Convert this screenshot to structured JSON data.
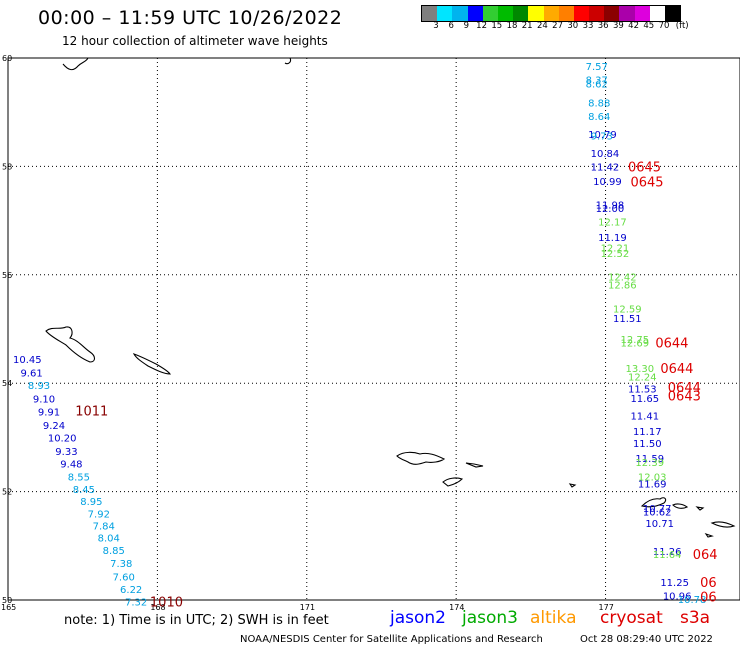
{
  "header": {
    "title": "00:00 – 11:59 UTC 10/26/2022",
    "subtitle": "12 hour collection of altimeter wave heights"
  },
  "legend": {
    "colors": [
      "#7f7f7f",
      "#00e5ff",
      "#00b4ee",
      "#0000ff",
      "#32cd32",
      "#00bb00",
      "#008800",
      "#ffff00",
      "#ffaa00",
      "#ff7f00",
      "#ff0000",
      "#cc0000",
      "#8b0000",
      "#aa00aa",
      "#dd00dd",
      "#ffffff",
      "#000000"
    ],
    "labels": [
      "3",
      "6",
      "9",
      "12",
      "15",
      "18",
      "21",
      "24",
      "27",
      "30",
      "33",
      "36",
      "39",
      "42",
      "45",
      "70",
      "(ft)"
    ]
  },
  "map": {
    "lat_labels": [
      "60",
      "58",
      "56",
      "54",
      "52",
      "50"
    ],
    "lon_labels": [
      "165",
      "168",
      "171",
      "174",
      "177"
    ],
    "observations": [
      {
        "t": "7.57",
        "c": "#00a0e0",
        "lon": 176.6,
        "lat": 59.85
      },
      {
        "t": "8.37",
        "c": "#00a0e0",
        "lon": 176.6,
        "lat": 59.6
      },
      {
        "t": "8.62",
        "c": "#00a0e0",
        "lon": 176.6,
        "lat": 59.53
      },
      {
        "t": "8.88",
        "c": "#00a0e0",
        "lon": 176.65,
        "lat": 59.18
      },
      {
        "t": "8.64",
        "c": "#00a0e0",
        "lon": 176.65,
        "lat": 58.93
      },
      {
        "t": "10.79",
        "c": "#0000cc",
        "lon": 176.65,
        "lat": 58.6
      },
      {
        "t": "9.73",
        "c": "#00a0e0",
        "lon": 176.7,
        "lat": 58.57
      },
      {
        "t": "10.84",
        "c": "#0000cc",
        "lon": 176.7,
        "lat": 58.25
      },
      {
        "t": "11.42",
        "c": "#0000cc",
        "lon": 176.7,
        "lat": 58.0
      },
      {
        "t": "10.99",
        "c": "#0000cc",
        "lon": 176.75,
        "lat": 57.73
      },
      {
        "t": "11.98",
        "c": "#0000cc",
        "lon": 176.8,
        "lat": 57.3
      },
      {
        "t": "12.00",
        "c": "#0000cc",
        "lon": 176.8,
        "lat": 57.23
      },
      {
        "t": "12.17",
        "c": "#66dd44",
        "lon": 176.85,
        "lat": 56.98
      },
      {
        "t": "11.19",
        "c": "#0000cc",
        "lon": 176.85,
        "lat": 56.7
      },
      {
        "t": "12.21",
        "c": "#66dd44",
        "lon": 176.9,
        "lat": 56.5
      },
      {
        "t": "12.52",
        "c": "#66dd44",
        "lon": 176.9,
        "lat": 56.4
      },
      {
        "t": "12.42",
        "c": "#66dd44",
        "lon": 177.05,
        "lat": 55.97
      },
      {
        "t": "12.86",
        "c": "#66dd44",
        "lon": 177.05,
        "lat": 55.82
      },
      {
        "t": "12.59",
        "c": "#66dd44",
        "lon": 177.15,
        "lat": 55.38
      },
      {
        "t": "11.51",
        "c": "#0000cc",
        "lon": 177.15,
        "lat": 55.2
      },
      {
        "t": "12.75",
        "c": "#66dd44",
        "lon": 177.3,
        "lat": 54.82
      },
      {
        "t": "12.69",
        "c": "#66dd44",
        "lon": 177.3,
        "lat": 54.75
      },
      {
        "t": "13.30",
        "c": "#66dd44",
        "lon": 177.4,
        "lat": 54.28
      },
      {
        "t": "12.24",
        "c": "#66dd44",
        "lon": 177.45,
        "lat": 54.12
      },
      {
        "t": "11.53",
        "c": "#0000cc",
        "lon": 177.45,
        "lat": 53.9
      },
      {
        "t": "11.65",
        "c": "#0000cc",
        "lon": 177.5,
        "lat": 53.73
      },
      {
        "t": "11.41",
        "c": "#0000cc",
        "lon": 177.5,
        "lat": 53.4
      },
      {
        "t": "11.17",
        "c": "#0000cc",
        "lon": 177.55,
        "lat": 53.12
      },
      {
        "t": "11.50",
        "c": "#0000cc",
        "lon": 177.55,
        "lat": 52.9
      },
      {
        "t": "11.59",
        "c": "#0000cc",
        "lon": 177.6,
        "lat": 52.62
      },
      {
        "t": "12.39",
        "c": "#66dd44",
        "lon": 177.6,
        "lat": 52.55
      },
      {
        "t": "12.03",
        "c": "#66dd44",
        "lon": 177.65,
        "lat": 52.28
      },
      {
        "t": "11.69",
        "c": "#0000cc",
        "lon": 177.65,
        "lat": 52.15
      },
      {
        "t": "10.77",
        "c": "#0000cc",
        "lon": 177.75,
        "lat": 51.7
      },
      {
        "t": "10.62",
        "c": "#0000cc",
        "lon": 177.75,
        "lat": 51.63
      },
      {
        "t": "10.71",
        "c": "#0000cc",
        "lon": 177.8,
        "lat": 51.42
      },
      {
        "t": "11.26",
        "c": "#0000cc",
        "lon": 177.95,
        "lat": 50.9
      },
      {
        "t": "11.64",
        "c": "#66dd44",
        "lon": 177.95,
        "lat": 50.85
      },
      {
        "t": "11.25",
        "c": "#0000cc",
        "lon": 178.1,
        "lat": 50.33
      },
      {
        "t": "10.96",
        "c": "#0000cc",
        "lon": 178.15,
        "lat": 50.08
      },
      {
        "t": "10.78",
        "c": "#00a0e0",
        "lon": 178.45,
        "lat": 50.02
      },
      {
        "t": "10.45",
        "c": "#0000cc",
        "lon": 165.1,
        "lat": 54.45
      },
      {
        "t": "9.61",
        "c": "#0000cc",
        "lon": 165.25,
        "lat": 54.2
      },
      {
        "t": "8.93",
        "c": "#00a0e0",
        "lon": 165.4,
        "lat": 53.97
      },
      {
        "t": "9.10",
        "c": "#0000cc",
        "lon": 165.5,
        "lat": 53.72
      },
      {
        "t": "9.91",
        "c": "#0000cc",
        "lon": 165.6,
        "lat": 53.48
      },
      {
        "t": "9.24",
        "c": "#0000cc",
        "lon": 165.7,
        "lat": 53.23
      },
      {
        "t": "10.20",
        "c": "#0000cc",
        "lon": 165.8,
        "lat": 53.0
      },
      {
        "t": "9.33",
        "c": "#0000cc",
        "lon": 165.95,
        "lat": 52.75
      },
      {
        "t": "9.48",
        "c": "#0000cc",
        "lon": 166.05,
        "lat": 52.52
      },
      {
        "t": "8.55",
        "c": "#00a0e0",
        "lon": 166.2,
        "lat": 52.28
      },
      {
        "t": "8.45",
        "c": "#00a0e0",
        "lon": 166.3,
        "lat": 52.05
      },
      {
        "t": "8.95",
        "c": "#00a0e0",
        "lon": 166.45,
        "lat": 51.83
      },
      {
        "t": "7.92",
        "c": "#00a0e0",
        "lon": 166.6,
        "lat": 51.6
      },
      {
        "t": "7.84",
        "c": "#00a0e0",
        "lon": 166.7,
        "lat": 51.37
      },
      {
        "t": "8.04",
        "c": "#00a0e0",
        "lon": 166.8,
        "lat": 51.15
      },
      {
        "t": "8.85",
        "c": "#00a0e0",
        "lon": 166.9,
        "lat": 50.92
      },
      {
        "t": "7.38",
        "c": "#00a0e0",
        "lon": 167.05,
        "lat": 50.68
      },
      {
        "t": "7.60",
        "c": "#00a0e0",
        "lon": 167.1,
        "lat": 50.43
      },
      {
        "t": "6.22",
        "c": "#00a0e0",
        "lon": 167.25,
        "lat": 50.2
      },
      {
        "t": "7.32",
        "c": "#00a0e0",
        "lon": 167.35,
        "lat": 49.97
      }
    ],
    "time_labels": [
      {
        "t": "0645",
        "lon": 177.45,
        "lat": 58.0,
        "c": "#dd0000"
      },
      {
        "t": "0645",
        "lon": 177.5,
        "lat": 57.72,
        "c": "#dd0000"
      },
      {
        "t": "0644",
        "lon": 178.0,
        "lat": 54.75,
        "c": "#dd0000"
      },
      {
        "t": "0644",
        "lon": 178.1,
        "lat": 54.28,
        "c": "#dd0000"
      },
      {
        "t": "0644",
        "lon": 178.25,
        "lat": 53.93,
        "c": "#dd0000"
      },
      {
        "t": "0643",
        "lon": 178.25,
        "lat": 53.77,
        "c": "#dd0000"
      },
      {
        "t": "064",
        "lon": 178.75,
        "lat": 50.85,
        "c": "#dd0000"
      },
      {
        "t": "06",
        "lon": 178.9,
        "lat": 50.33,
        "c": "#dd0000"
      },
      {
        "t": "06",
        "lon": 178.9,
        "lat": 50.06,
        "c": "#dd0000"
      },
      {
        "t": "1011",
        "lon": 166.35,
        "lat": 53.5,
        "c": "#880000"
      },
      {
        "t": "1010",
        "lon": 167.85,
        "lat": 49.97,
        "c": "#880000"
      }
    ]
  },
  "footer": {
    "note": "note: 1) Time is in UTC; 2) SWH is in feet",
    "sat_jason2": "jason2",
    "sat_jason3": "jason3",
    "sat_altika": "altika",
    "sat_cryosat": "cryosat",
    "sat_s3a": "s3a",
    "credit": "NOAA/NESDIS Center for Satellite Applications and Research",
    "timestamp": "Oct 28 08:29:40 UTC 2022"
  }
}
